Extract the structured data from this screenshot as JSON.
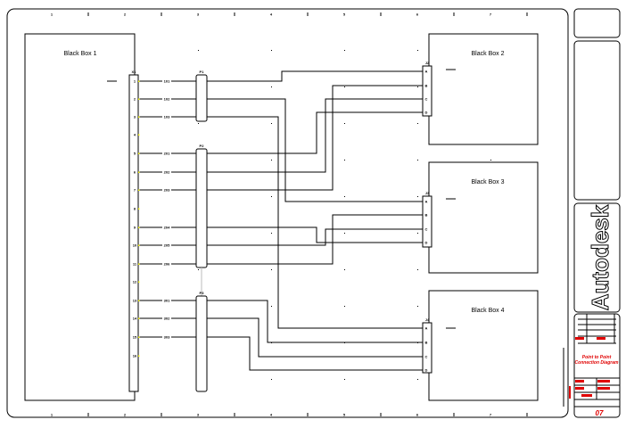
{
  "ruler": {
    "numbers": [
      "1",
      "2",
      "3",
      "4",
      "5",
      "6",
      "7"
    ]
  },
  "boxes": [
    {
      "title": "Black Box 1"
    },
    {
      "title": "Black Box 2"
    },
    {
      "title": "Black Box 3"
    },
    {
      "title": "Black Box 4"
    }
  ],
  "connectors": {
    "x1": {
      "label": "X1",
      "pins": [
        "1",
        "2",
        "3",
        "4",
        "5",
        "6",
        "7",
        "8",
        "9",
        "10",
        "11",
        "12",
        "13",
        "14",
        "15",
        "16"
      ]
    },
    "p1": {
      "label": "P1"
    },
    "p2": {
      "label": "P2"
    },
    "p3": {
      "label": "P3"
    },
    "j2": {
      "label": "J2",
      "pins": [
        "A",
        "B",
        "C",
        "D"
      ]
    },
    "j3": {
      "label": "J3",
      "pins": [
        "A",
        "B",
        "C",
        "D"
      ]
    },
    "j4": {
      "label": "J4",
      "pins": [
        "A",
        "B",
        "C",
        "D"
      ]
    }
  },
  "wires": [
    "101",
    "102",
    "103",
    "201",
    "202",
    "203",
    "204",
    "205",
    "206",
    "301",
    "302",
    "303"
  ],
  "titleblock": {
    "logo": "Autodesk",
    "drawing_title": "Point to Point Connection Diagram",
    "sheet": "07"
  },
  "colors": {
    "line": "#000000",
    "titleblock_text": "#e00000",
    "pin_marker": "#ffff00"
  }
}
